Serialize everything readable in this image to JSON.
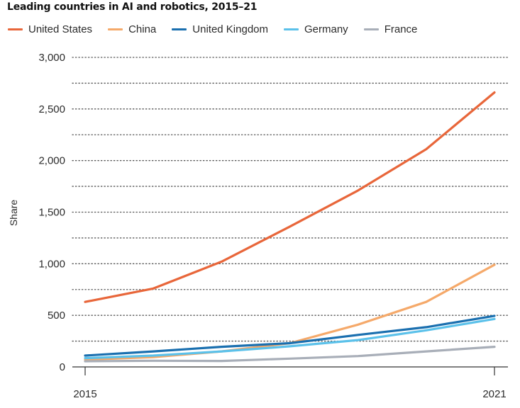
{
  "chart_data": {
    "type": "line",
    "title": "Leading countries in AI and robotics, 2015–21",
    "xlabel": "",
    "ylabel": "Share",
    "x": [
      2015,
      2016,
      2017,
      2018,
      2019,
      2020,
      2021
    ],
    "x_tick_labels": [
      "2015",
      "2021"
    ],
    "ylim": [
      0,
      3000
    ],
    "y_ticks": [
      0,
      500,
      1000,
      1500,
      2000,
      2500,
      3000
    ],
    "y_tick_labels": [
      "0",
      "500",
      "1,000",
      "1,500",
      "2,000",
      "2,500",
      "3,000"
    ],
    "grid": "dotted horizontal",
    "legend": "top",
    "series": [
      {
        "name": "United States",
        "color": "#e8663a",
        "values": [
          630,
          760,
          1020,
          1360,
          1710,
          2110,
          2660
        ]
      },
      {
        "name": "China",
        "color": "#f5a96a",
        "values": [
          70,
          95,
          150,
          230,
          410,
          630,
          990
        ]
      },
      {
        "name": "United Kingdom",
        "color": "#1a6faf",
        "values": [
          110,
          150,
          195,
          230,
          310,
          385,
          495
        ]
      },
      {
        "name": "Germany",
        "color": "#5bc1ea",
        "values": [
          85,
          110,
          150,
          200,
          260,
          355,
          465
        ]
      },
      {
        "name": "France",
        "color": "#a8aeb8",
        "values": [
          55,
          60,
          58,
          80,
          105,
          150,
          195
        ]
      }
    ]
  }
}
